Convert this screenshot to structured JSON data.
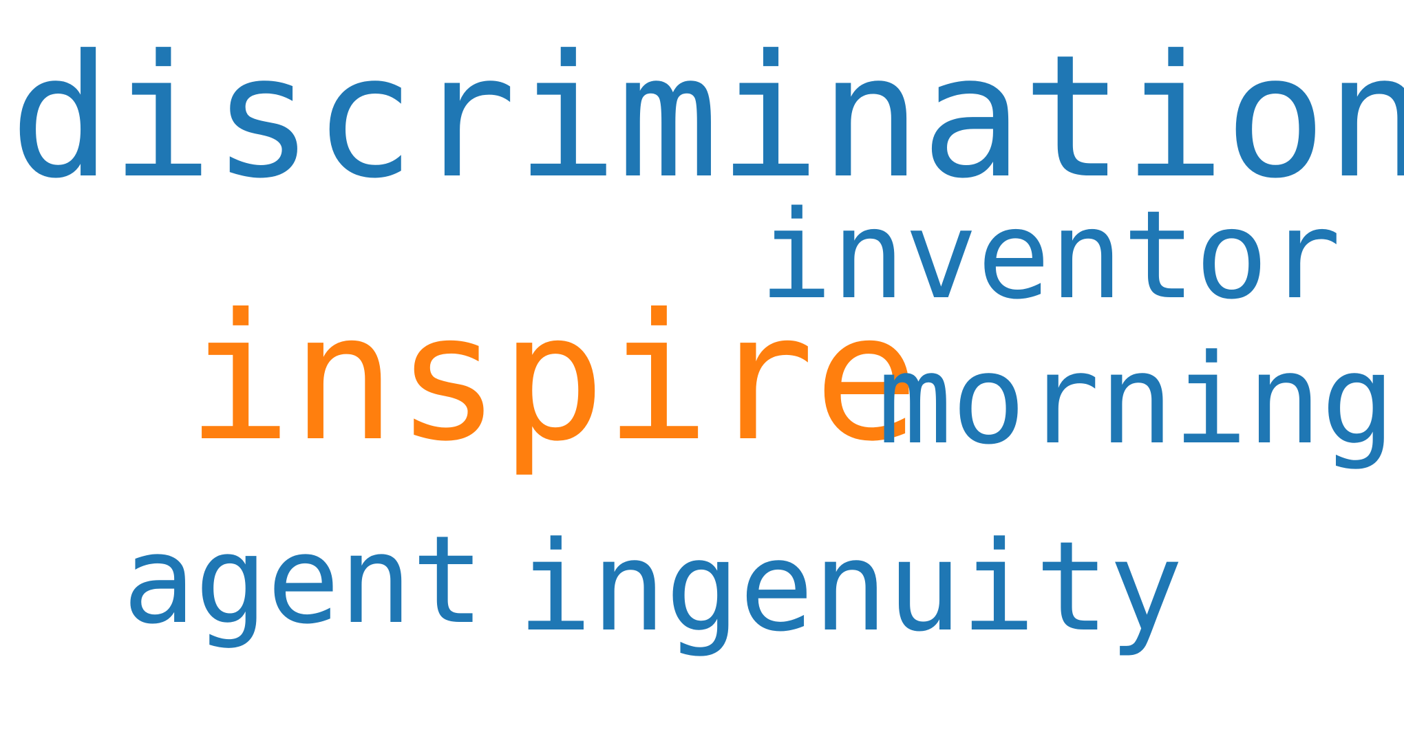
{
  "word_cloud": {
    "words": [
      {
        "text": "discrimination",
        "color": "#1f77b4",
        "emphasis": "largest"
      },
      {
        "text": "inventor",
        "color": "#1f77b4"
      },
      {
        "text": "inspire",
        "color": "#ff7f0e",
        "emphasis": "highlighted"
      },
      {
        "text": "morning",
        "color": "#1f77b4"
      },
      {
        "text": "agent",
        "color": "#1f77b4"
      },
      {
        "text": "ingenuity",
        "color": "#1f77b4"
      }
    ]
  }
}
